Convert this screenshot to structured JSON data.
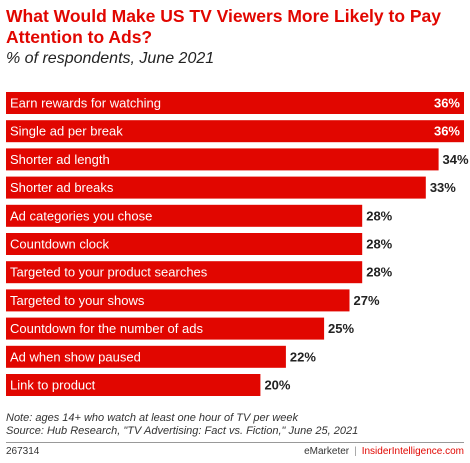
{
  "chart_data": {
    "type": "bar",
    "orientation": "horizontal",
    "title": "What Would Make US TV Viewers More Likely to Pay Attention to Ads?",
    "subtitle": "% of respondents, June 2021",
    "categories": [
      "Earn rewards for watching",
      "Single ad per break",
      "Shorter ad length",
      "Shorter ad breaks",
      "Ad categories you chose",
      "Countdown clock",
      "Targeted to your product searches",
      "Targeted to your shows",
      "Countdown for the number of ads",
      "Ad when show paused",
      "Link to product"
    ],
    "values": [
      36,
      36,
      34,
      33,
      28,
      28,
      28,
      27,
      25,
      22,
      20
    ],
    "value_labels": [
      "36%",
      "36%",
      "34%",
      "33%",
      "28%",
      "28%",
      "28%",
      "27%",
      "25%",
      "22%",
      "20%"
    ],
    "xlim": [
      0,
      36
    ],
    "grid": false,
    "bar_color": "#e10600"
  },
  "notes": {
    "note": "Note: ages 14+ who watch at least one hour of TV per week",
    "source": "Source: Hub Research, \"TV Advertising: Fact vs. Fiction,\" June 25, 2021"
  },
  "footer": {
    "chart_id": "267314",
    "brand_left": "eMarketer",
    "separator": "|",
    "brand_right": "InsiderIntelligence.com"
  }
}
